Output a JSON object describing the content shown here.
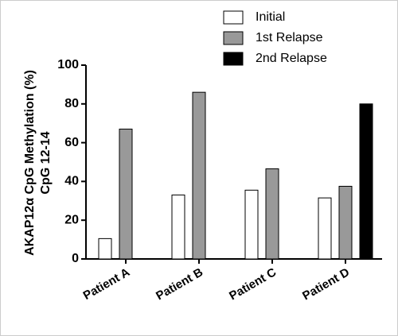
{
  "chart_data": {
    "type": "bar",
    "y_label": [
      "AKAP12α CpG Methylation (%)",
      "CpG 12-14"
    ],
    "categories": [
      "Patient A",
      "Patient B",
      "Patient C",
      "Patient D"
    ],
    "series": [
      {
        "name": "Initial",
        "color": "#ffffff",
        "values": [
          10.5,
          33,
          35.5,
          31.5
        ]
      },
      {
        "name": "1st Relapse",
        "color": "#999999",
        "values": [
          67,
          86,
          46.5,
          37.5
        ]
      },
      {
        "name": "2nd Relapse",
        "color": "#000000",
        "values": [
          null,
          null,
          null,
          80
        ]
      }
    ],
    "ylim": [
      0,
      100
    ],
    "yticks": [
      0,
      20,
      40,
      60,
      80,
      100
    ]
  }
}
